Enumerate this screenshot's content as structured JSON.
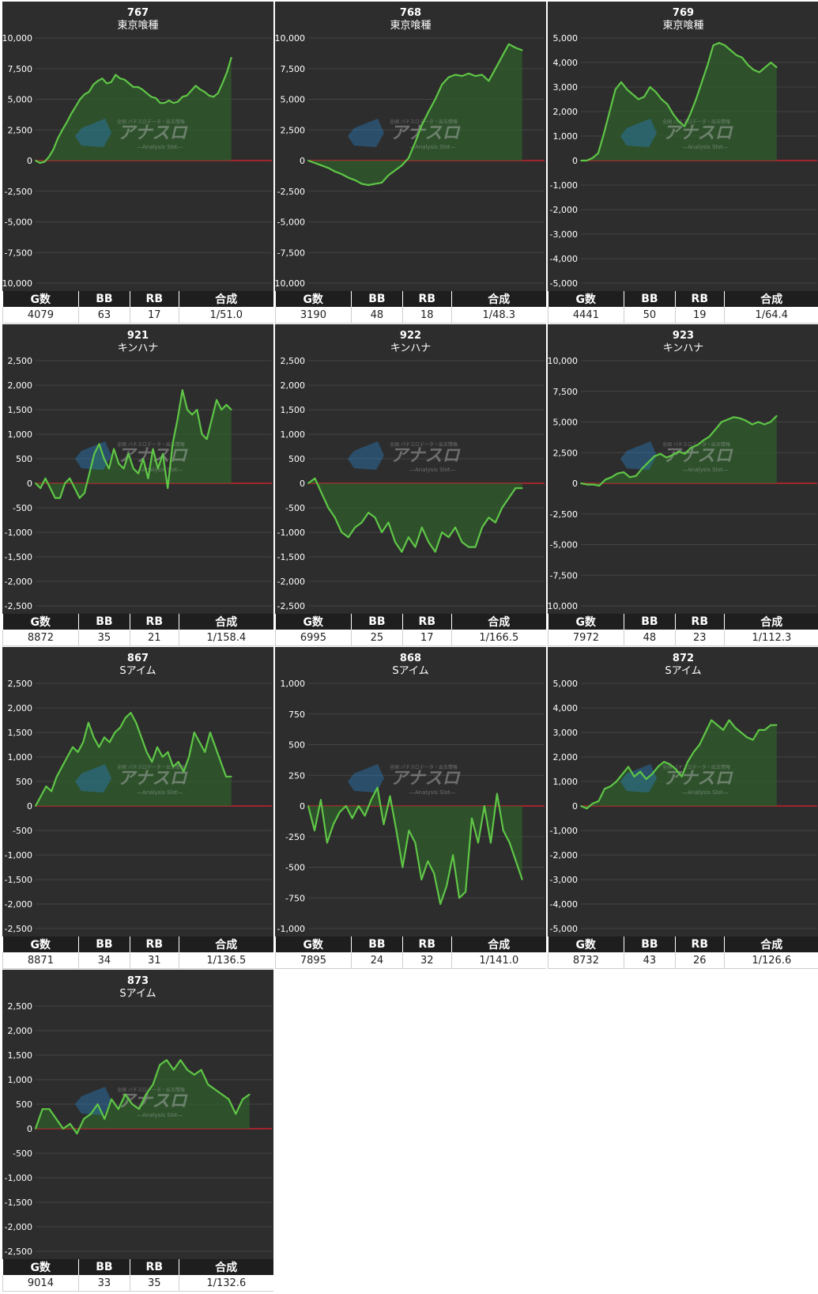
{
  "headers": {
    "games": "G数",
    "bb": "BB",
    "rb": "RB",
    "ratio": "合成"
  },
  "colors": {
    "background": "#2d2d2d",
    "line": "#5fc646",
    "fill": "#2f5e2c",
    "zero_line": "#c8232c",
    "grid": "#444444"
  },
  "watermark": {
    "name": "アナスロ",
    "sub": "—Analysis Slot—",
    "tag": "全国 パチスロデータ・出玉情報"
  },
  "charts": [
    {
      "machine": "767",
      "title": "東京喰種",
      "chart_data": {
        "type": "area",
        "ylim": [
          -10000,
          10000
        ],
        "yticks": [
          "10,000",
          "7,500",
          "5,000",
          "2,500",
          "0",
          "-2,500",
          "-5,000",
          "-7,500",
          "-10,000"
        ],
        "values": [
          0,
          -200,
          -100,
          300,
          900,
          1800,
          2500,
          3100,
          3800,
          4400,
          5000,
          5400,
          5600,
          6200,
          6500,
          6700,
          6300,
          6400,
          7000,
          6700,
          6600,
          6300,
          6000,
          6000,
          5800,
          5500,
          5200,
          5100,
          4700,
          4700,
          4900,
          4700,
          4800,
          5200,
          5300,
          5700,
          6100,
          5800,
          5600,
          5300,
          5200,
          5500,
          6300,
          7200,
          8400
        ]
      },
      "stats": {
        "games": "4079",
        "bb": "63",
        "rb": "17",
        "ratio": "1/51.0"
      }
    },
    {
      "machine": "768",
      "title": "東京喰種",
      "chart_data": {
        "type": "area",
        "ylim": [
          -10000,
          10000
        ],
        "yticks": [
          "10,000",
          "7,500",
          "5,000",
          "2,500",
          "0",
          "-2,500",
          "-5,000",
          "-7,500",
          "-10,000"
        ],
        "values": [
          0,
          -200,
          -400,
          -600,
          -900,
          -1100,
          -1400,
          -1600,
          -1900,
          -2000,
          -1900,
          -1800,
          -1200,
          -800,
          -400,
          200,
          1500,
          2900,
          4000,
          5000,
          6200,
          6800,
          7000,
          6900,
          7100,
          6900,
          7000,
          6500,
          7500,
          8500,
          9500,
          9200,
          9000
        ]
      },
      "stats": {
        "games": "3190",
        "bb": "48",
        "rb": "18",
        "ratio": "1/48.3"
      }
    },
    {
      "machine": "769",
      "title": "東京喰種",
      "chart_data": {
        "type": "area",
        "ylim": [
          -5000,
          5000
        ],
        "yticks": [
          "5,000",
          "4,000",
          "3,000",
          "2,000",
          "1,000",
          "0",
          "-1,000",
          "-2,000",
          "-3,000",
          "-4,000",
          "-5,000"
        ],
        "values": [
          0,
          0,
          100,
          300,
          1100,
          2000,
          2900,
          3200,
          2900,
          2700,
          2500,
          2600,
          3000,
          2800,
          2500,
          2300,
          1900,
          1600,
          1400,
          1900,
          2500,
          3200,
          3900,
          4700,
          4800,
          4700,
          4500,
          4300,
          4200,
          3900,
          3700,
          3600,
          3800,
          4000,
          3800
        ]
      },
      "stats": {
        "games": "4441",
        "bb": "50",
        "rb": "19",
        "ratio": "1/64.4"
      }
    },
    {
      "machine": "921",
      "title": "キンハナ",
      "chart_data": {
        "type": "line",
        "ylim": [
          -2500,
          2500
        ],
        "yticks": [
          "2,500",
          "2,000",
          "1,500",
          "1,000",
          "500",
          "0",
          "-500",
          "-1,000",
          "-1,500",
          "-2,000",
          "-2,500"
        ],
        "values": [
          0,
          -100,
          100,
          -100,
          -300,
          -300,
          0,
          100,
          -100,
          -300,
          -200,
          200,
          600,
          800,
          500,
          300,
          700,
          400,
          300,
          600,
          300,
          200,
          500,
          100,
          700,
          300,
          600,
          -100,
          800,
          1300,
          1900,
          1500,
          1400,
          1500,
          1000,
          900,
          1300,
          1700,
          1500,
          1600,
          1500
        ]
      },
      "stats": {
        "games": "8872",
        "bb": "35",
        "rb": "21",
        "ratio": "1/158.4"
      }
    },
    {
      "machine": "922",
      "title": "キンハナ",
      "chart_data": {
        "type": "area",
        "ylim": [
          -2500,
          2500
        ],
        "yticks": [
          "2,500",
          "2,000",
          "1,500",
          "1,000",
          "500",
          "0",
          "-500",
          "-1,000",
          "-1,500",
          "-2,000",
          "-2,500"
        ],
        "values": [
          0,
          100,
          -200,
          -500,
          -700,
          -1000,
          -1100,
          -900,
          -800,
          -600,
          -700,
          -1000,
          -800,
          -1200,
          -1400,
          -1100,
          -1300,
          -900,
          -1200,
          -1400,
          -1000,
          -1100,
          -900,
          -1200,
          -1300,
          -1300,
          -900,
          -700,
          -800,
          -500,
          -300,
          -100,
          -100
        ]
      },
      "stats": {
        "games": "6995",
        "bb": "25",
        "rb": "17",
        "ratio": "1/166.5"
      }
    },
    {
      "machine": "923",
      "title": "キンハナ",
      "chart_data": {
        "type": "area",
        "ylim": [
          -10000,
          10000
        ],
        "yticks": [
          "10,000",
          "7,500",
          "5,000",
          "2,500",
          "0",
          "-2,500",
          "-5,000",
          "-7,500",
          "-10,000"
        ],
        "values": [
          0,
          -100,
          -100,
          -200,
          300,
          500,
          800,
          900,
          500,
          600,
          1200,
          1700,
          2200,
          2400,
          2100,
          2300,
          2600,
          2400,
          2900,
          3100,
          3500,
          3800,
          4400,
          5000,
          5200,
          5400,
          5300,
          5100,
          4800,
          5000,
          4800,
          5000,
          5500
        ]
      },
      "stats": {
        "games": "7972",
        "bb": "48",
        "rb": "23",
        "ratio": "1/112.3"
      }
    },
    {
      "machine": "867",
      "title": "Sアイム",
      "chart_data": {
        "type": "area",
        "ylim": [
          -2500,
          2500
        ],
        "yticks": [
          "2,500",
          "2,000",
          "1,500",
          "1,000",
          "500",
          "0",
          "-500",
          "-1,000",
          "-1,500",
          "-2,000",
          "-2,500"
        ],
        "values": [
          0,
          200,
          400,
          300,
          600,
          800,
          1000,
          1200,
          1100,
          1300,
          1700,
          1400,
          1200,
          1400,
          1300,
          1500,
          1600,
          1800,
          1900,
          1700,
          1400,
          1100,
          900,
          1200,
          1000,
          1100,
          800,
          900,
          700,
          1000,
          1500,
          1300,
          1100,
          1500,
          1200,
          900,
          600,
          600
        ]
      },
      "stats": {
        "games": "8871",
        "bb": "34",
        "rb": "31",
        "ratio": "1/136.5"
      }
    },
    {
      "machine": "868",
      "title": "Sアイム",
      "chart_data": {
        "type": "line",
        "ylim": [
          -1000,
          1000
        ],
        "yticks": [
          "1,000",
          "750",
          "500",
          "250",
          "0",
          "-250",
          "-500",
          "-750",
          "-1,000"
        ],
        "values": [
          0,
          -200,
          50,
          -300,
          -150,
          -50,
          0,
          -100,
          0,
          -80,
          50,
          150,
          -150,
          80,
          -200,
          -500,
          -200,
          -300,
          -600,
          -450,
          -550,
          -800,
          -650,
          -400,
          -750,
          -700,
          -100,
          -300,
          0,
          -300,
          100,
          -200,
          -300,
          -450,
          -600
        ]
      },
      "stats": {
        "games": "7895",
        "bb": "24",
        "rb": "32",
        "ratio": "1/141.0"
      }
    },
    {
      "machine": "872",
      "title": "Sアイム",
      "chart_data": {
        "type": "area",
        "ylim": [
          -5000,
          5000
        ],
        "yticks": [
          "5,000",
          "4,000",
          "3,000",
          "2,000",
          "1,000",
          "0",
          "-1,000",
          "-2,000",
          "-3,000",
          "-4,000",
          "-5,000"
        ],
        "values": [
          0,
          -100,
          100,
          200,
          700,
          800,
          1000,
          1300,
          1600,
          1200,
          1400,
          1100,
          1300,
          1600,
          1800,
          1700,
          1500,
          1200,
          1800,
          2200,
          2500,
          3000,
          3500,
          3300,
          3100,
          3500,
          3200,
          3000,
          2800,
          2700,
          3100,
          3100,
          3300,
          3300
        ]
      },
      "stats": {
        "games": "8732",
        "bb": "43",
        "rb": "26",
        "ratio": "1/126.6"
      }
    },
    {
      "machine": "873",
      "title": "Sアイム",
      "chart_data": {
        "type": "area",
        "ylim": [
          -2500,
          2500
        ],
        "yticks": [
          "2,500",
          "2,000",
          "1,500",
          "1,000",
          "500",
          "0",
          "-500",
          "-1,000",
          "-1,500",
          "-2,000",
          "-2,500"
        ],
        "values": [
          0,
          400,
          400,
          200,
          0,
          100,
          -100,
          200,
          300,
          500,
          200,
          600,
          400,
          700,
          500,
          400,
          700,
          900,
          1300,
          1400,
          1200,
          1400,
          1200,
          1100,
          1200,
          900,
          800,
          700,
          600,
          300,
          600,
          700
        ]
      },
      "stats": {
        "games": "9014",
        "bb": "33",
        "rb": "35",
        "ratio": "1/132.6"
      }
    }
  ]
}
